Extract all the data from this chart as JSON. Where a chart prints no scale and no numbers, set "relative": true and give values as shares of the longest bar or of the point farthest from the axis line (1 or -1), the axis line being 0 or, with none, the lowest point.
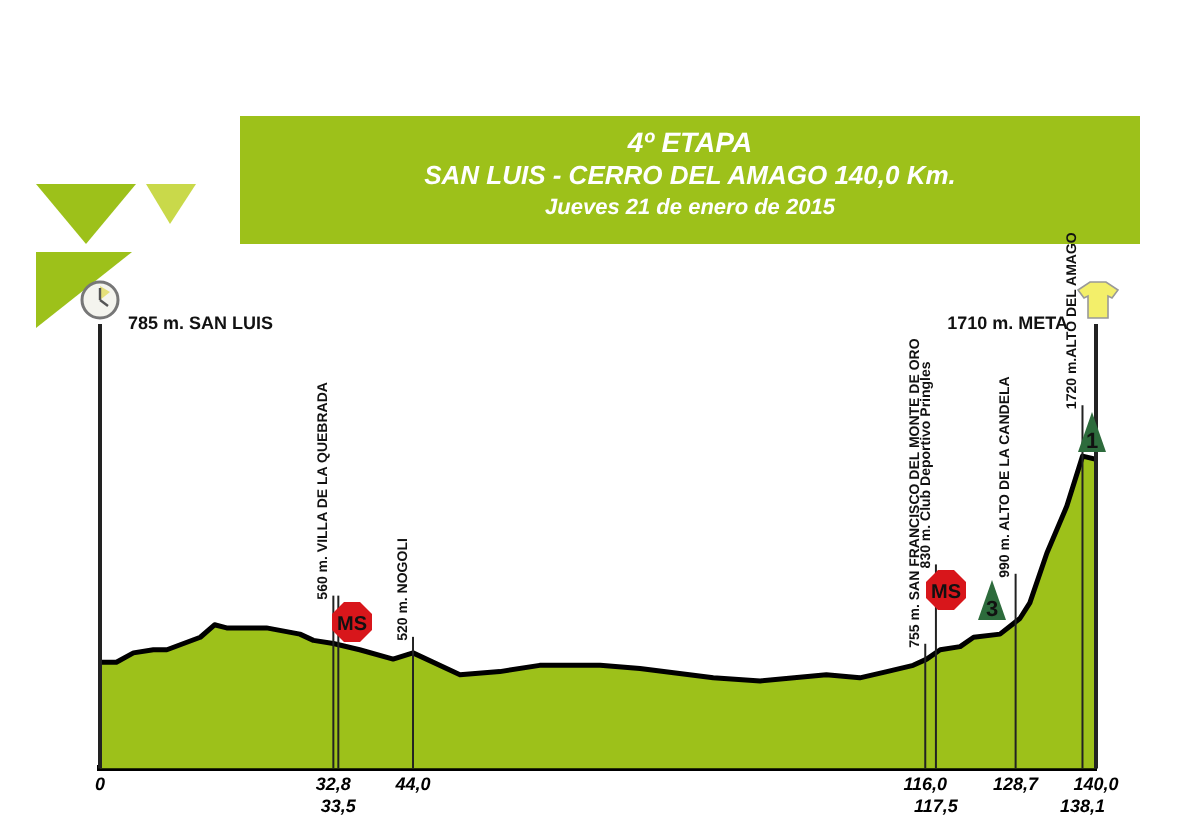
{
  "chart_data": {
    "type": "area",
    "relative": true,
    "title": "4º ETAPA",
    "subtitle": "SAN LUIS - CERRO DEL AMAGO 140,0 Km.",
    "x": [
      0,
      2.3,
      4.7,
      7.5,
      9.4,
      14.1,
      16.1,
      17.8,
      23.4,
      28.1,
      30.0,
      32.8,
      36.5,
      41.2,
      44.0,
      50.6,
      56.2,
      61.8,
      70.3,
      75.9,
      86.2,
      92.8,
      102.1,
      106.8,
      110.6,
      114.3,
      116.2,
      118.1,
      120.9,
      122.8,
      126.5,
      129.3,
      130.7,
      133.1,
      135.9,
      138.1,
      140.0
    ],
    "values": [
      0.34,
      0.34,
      0.37,
      0.38,
      0.38,
      0.42,
      0.46,
      0.45,
      0.45,
      0.43,
      0.41,
      0.4,
      0.38,
      0.35,
      0.37,
      0.3,
      0.31,
      0.33,
      0.33,
      0.32,
      0.29,
      0.28,
      0.3,
      0.29,
      0.31,
      0.33,
      0.35,
      0.38,
      0.39,
      0.42,
      0.43,
      0.48,
      0.53,
      0.69,
      0.84,
      1.0,
      0.99
    ],
    "color": "#9dc11a",
    "marker": "none",
    "grid": false,
    "tick_labels": "x",
    "xlim": [
      0,
      140
    ],
    "xticks": [
      0,
      {
        "value": 32.8,
        "label": "32,8"
      },
      {
        "value": 44.0,
        "label": "44,0"
      },
      {
        "value": 116.0,
        "label": "116,0"
      },
      {
        "value": 128.7,
        "label": "128,7"
      },
      {
        "value": 140.0,
        "label": "140,0"
      }
    ],
    "ref_lines": [
      {
        "axis": "x",
        "value": 0,
        "label": "785 m. SAN LUIS"
      },
      {
        "axis": "x",
        "value": 32.8,
        "label": "560 m. VILLA DE LA QUEBRADA"
      },
      {
        "axis": "x",
        "value": 33.5,
        "label": null
      },
      {
        "axis": "x",
        "value": 44.0,
        "label": "520 m. NOGOLI"
      },
      {
        "axis": "x",
        "value": 116.0,
        "label": "755 m. SAN FRANCISCO DEL MONTE DE ORO"
      },
      {
        "axis": "x",
        "value": 117.5,
        "label": "830 m. Club Deportivo Pringles"
      },
      {
        "axis": "x",
        "value": 128.7,
        "label": "990 m. ALTO DE LA CANDELA"
      },
      {
        "axis": "x",
        "value": 138.1,
        "label": "1720 m.ALTO DEL AMAGO"
      },
      {
        "axis": "x",
        "value": 140.0,
        "label": "1710 m. META"
      }
    ],
    "annotations": [
      "Jueves 21 de enero de 2015",
      {
        "text": "MS",
        "x": 35.5,
        "y": 0.47
      },
      {
        "text": "MS",
        "x": 119.0,
        "y": 0.57
      },
      {
        "text": "3",
        "x": 125.5,
        "y": 0.54
      },
      {
        "text": "1",
        "x": 139.5,
        "y": 1.08
      },
      {
        "text": "33,5",
        "x": 33.5,
        "y": 0
      },
      {
        "text": "117,5",
        "x": 117.5,
        "y": 0
      },
      {
        "text": "138,1",
        "x": 138.1,
        "y": 0
      }
    ]
  }
}
